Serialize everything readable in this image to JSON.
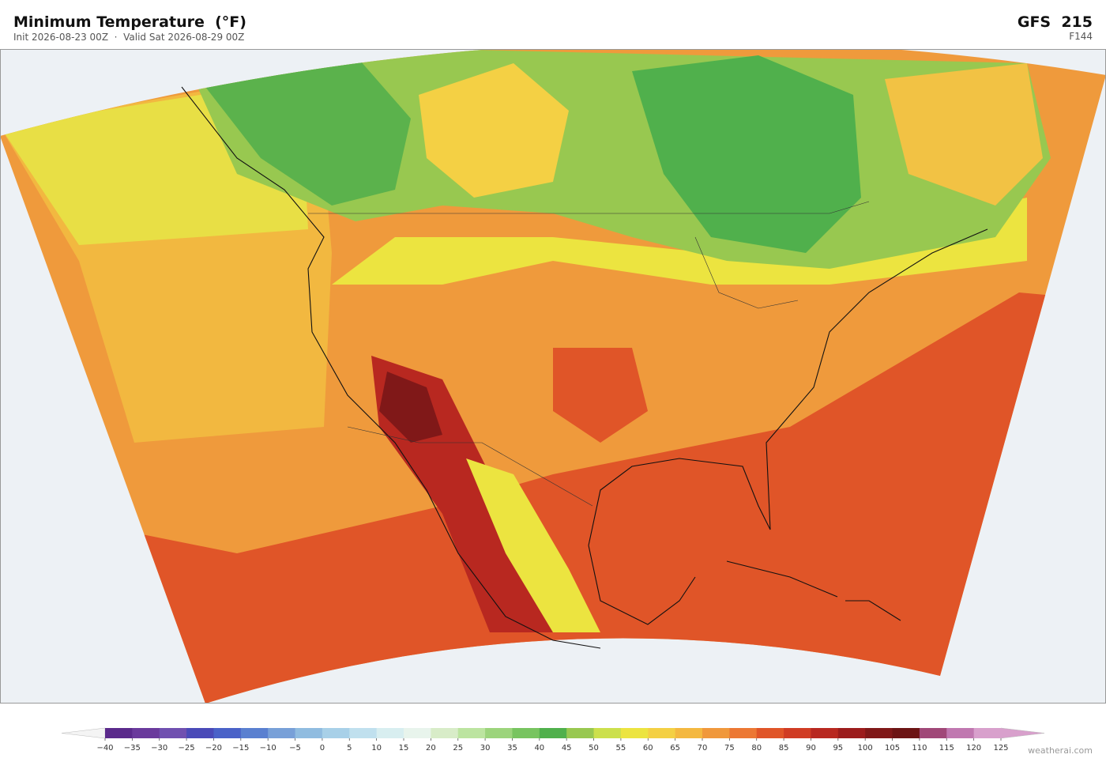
{
  "header": {
    "title": "Minimum Temperature  (°F)",
    "subtitle": "Init 2026-08-23 00Z  ·  Valid Sat 2026-08-29 00Z",
    "model": "GFS  215",
    "forecast_hour": "F144"
  },
  "colorbar": {
    "ticks": [
      "−40",
      "−35",
      "−30",
      "−25",
      "−20",
      "−15",
      "−10",
      "−5",
      "0",
      "5",
      "10",
      "15",
      "20",
      "25",
      "30",
      "35",
      "40",
      "45",
      "50",
      "55",
      "60",
      "65",
      "70",
      "75",
      "80",
      "85",
      "90",
      "95",
      "100",
      "105",
      "110",
      "115",
      "120",
      "125"
    ],
    "colors": [
      "#5b2a8c",
      "#6a3a9c",
      "#7050b0",
      "#4a4ab8",
      "#4a62c8",
      "#5a80d0",
      "#78a0d8",
      "#90bce0",
      "#a8d0e8",
      "#c0e0ee",
      "#d8eef0",
      "#e8f4ec",
      "#d8ecc8",
      "#bce4a0",
      "#9cd47c",
      "#78c460",
      "#50b04c",
      "#98c850",
      "#cce04c",
      "#ece440",
      "#f4d044",
      "#f4b840",
      "#f0983c",
      "#ec7834",
      "#e05528",
      "#d03c24",
      "#b82820",
      "#9c1c1c",
      "#801818",
      "#6c1414",
      "#a04878",
      "#c078b0",
      "#d8a0cc"
    ],
    "under_color": "#f4f4f4",
    "over_color": "#d8a0cc"
  },
  "footer": {
    "attribution": "weatherai.com"
  }
}
